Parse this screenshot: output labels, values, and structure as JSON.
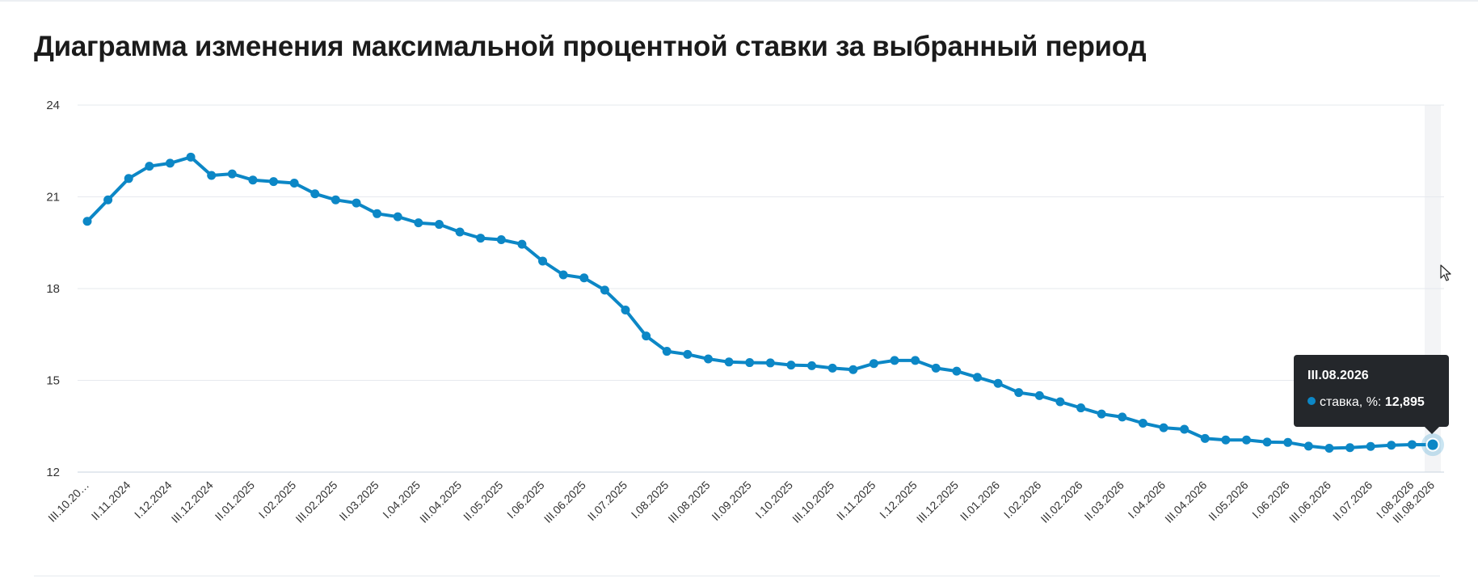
{
  "page": {
    "title": "Диаграмма изменения максимальной процентной ставки за выбранный период"
  },
  "colors": {
    "series": "#0c87c6",
    "grid": "#e6e9ee",
    "axis": "#c9d3df",
    "highlight_band": "#f3f4f6",
    "tooltip_bg": "#24272b"
  },
  "chart_data": {
    "type": "line",
    "ylim": [
      12,
      24
    ],
    "yticks": [
      12,
      15,
      18,
      21,
      24
    ],
    "xtick_labels": [
      "III.10.20…",
      "II.11.2024",
      "I.12.2024",
      "III.12.2024",
      "II.01.2025",
      "I.02.2025",
      "III.02.2025",
      "II.03.2025",
      "I.04.2025",
      "III.04.2025",
      "II.05.2025",
      "I.06.2025",
      "III.06.2025",
      "II.07.2025",
      "I.08.2025",
      "III.08.2025",
      "II.09.2025",
      "I.10.2025",
      "III.10.2025",
      "II.11.2025",
      "I.12.2025",
      "III.12.2025",
      "II.01.2026",
      "I.02.2026",
      "III.02.2026",
      "II.03.2026",
      "I.04.2026",
      "III.04.2026",
      "II.05.2026",
      "I.06.2026",
      "III.06.2026",
      "II.07.2026",
      "I.08.2026",
      "III.08.2026"
    ],
    "label_step": 2,
    "series": [
      {
        "name": "ставка, %",
        "values": [
          20.2,
          20.9,
          21.6,
          22.0,
          22.1,
          22.3,
          21.7,
          21.75,
          21.55,
          21.5,
          21.45,
          21.1,
          20.9,
          20.8,
          20.45,
          20.35,
          20.15,
          20.1,
          19.85,
          19.65,
          19.6,
          19.45,
          18.9,
          18.45,
          18.35,
          17.95,
          17.3,
          16.45,
          15.95,
          15.85,
          15.7,
          15.6,
          15.58,
          15.57,
          15.5,
          15.48,
          15.4,
          15.35,
          15.55,
          15.65,
          15.65,
          15.4,
          15.3,
          15.1,
          14.9,
          14.6,
          14.5,
          14.3,
          14.1,
          13.9,
          13.8,
          13.6,
          13.45,
          13.4,
          13.1,
          13.05,
          13.05,
          12.98,
          12.97,
          12.85,
          12.78,
          12.8,
          12.84,
          12.88,
          12.9,
          12.895
        ]
      }
    ]
  },
  "tooltip": {
    "date": "III.08.2026",
    "series_label": "ставка, %:",
    "value": "12,895"
  }
}
